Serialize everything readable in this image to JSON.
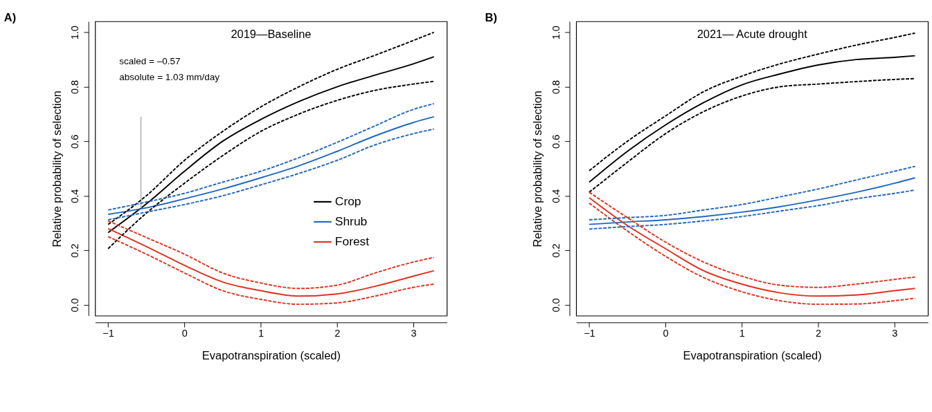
{
  "chart_data": [
    {
      "type": "line",
      "title": "A)",
      "xlabel": "Evapotranspiration (scaled)",
      "ylabel": "Relative probability of selection",
      "legend": "right",
      "annotations": [
        "2019—Baseline",
        "scaled = –0.57",
        "absolute = 1.03 mm/day"
      ],
      "xlim": [
        -1.17,
        3.44
      ],
      "ylim": [
        -0.04,
        1.04
      ],
      "xticks": [
        -1,
        0,
        1,
        2,
        3
      ],
      "yticks": [
        {
          "value": 0,
          "label": "0.0"
        },
        {
          "value": 0.2,
          "label": "0.2"
        },
        {
          "value": 0.4,
          "label": "0.4"
        },
        {
          "value": 0.6,
          "label": "0.6"
        },
        {
          "value": 0.8,
          "label": "0.8"
        },
        {
          "value": 1,
          "label": "1.0"
        }
      ],
      "x": [
        -1,
        -0.5,
        0,
        0.5,
        1,
        1.5,
        2,
        2.5,
        3,
        3.27
      ],
      "series": [
        {
          "name": "Crop",
          "color": "#000000",
          "line_style": "solid",
          "values": [
            0.265,
            0.37,
            0.49,
            0.6,
            0.68,
            0.746,
            0.8,
            0.843,
            0.884,
            0.91
          ]
        },
        {
          "name": "Shrub",
          "color": "#1f66c2",
          "line_style": "solid",
          "values": [
            0.332,
            0.356,
            0.389,
            0.425,
            0.466,
            0.51,
            0.563,
            0.62,
            0.669,
            0.69
          ]
        },
        {
          "name": "Forest",
          "color": "#e0301e",
          "line_style": "solid",
          "values": [
            0.28,
            0.214,
            0.145,
            0.084,
            0.052,
            0.032,
            0.04,
            0.068,
            0.105,
            0.125
          ]
        },
        {
          "color": "#000000",
          "line_style": "dashed",
          "values": [
            0.295,
            0.4,
            0.53,
            0.636,
            0.726,
            0.8,
            0.864,
            0.916,
            0.97,
            1.0
          ]
        },
        {
          "color": "#000000",
          "line_style": "dashed",
          "values": [
            0.206,
            0.336,
            0.446,
            0.547,
            0.636,
            0.7,
            0.75,
            0.787,
            0.81,
            0.82
          ]
        },
        {
          "color": "#1f66c2",
          "line_style": "dashed",
          "values": [
            0.348,
            0.377,
            0.409,
            0.45,
            0.49,
            0.54,
            0.596,
            0.657,
            0.717,
            0.738
          ]
        },
        {
          "color": "#1f66c2",
          "line_style": "dashed",
          "values": [
            0.312,
            0.34,
            0.368,
            0.4,
            0.44,
            0.482,
            0.53,
            0.587,
            0.628,
            0.645
          ]
        },
        {
          "color": "#e0301e",
          "line_style": "dashed",
          "values": [
            0.308,
            0.247,
            0.186,
            0.117,
            0.08,
            0.06,
            0.072,
            0.117,
            0.157,
            0.174
          ]
        },
        {
          "color": "#e0301e",
          "line_style": "dashed",
          "values": [
            0.25,
            0.186,
            0.117,
            0.052,
            0.02,
            0.002,
            0.007,
            0.032,
            0.064,
            0.076
          ]
        },
        {
          "type": "line",
          "color": "#bdbdbd",
          "line_style": "solid",
          "x": [
            -0.57,
            -0.57
          ],
          "values": [
            0.355,
            0.69
          ]
        }
      ]
    },
    {
      "type": "line",
      "title": "B)",
      "xlabel": "Evapotranspiration (scaled)",
      "ylabel": "Relative probability of selection",
      "annotations": [
        "2021— Acute drought"
      ],
      "xlim": [
        -1.17,
        3.44
      ],
      "ylim": [
        -0.04,
        1.04
      ],
      "xticks": [
        -1,
        0,
        1,
        2,
        3
      ],
      "yticks": [
        {
          "value": 0,
          "label": "0.0"
        },
        {
          "value": 0.2,
          "label": "0.2"
        },
        {
          "value": 0.4,
          "label": "0.4"
        },
        {
          "value": 0.6,
          "label": "0.6"
        },
        {
          "value": 0.8,
          "label": "0.8"
        },
        {
          "value": 1,
          "label": "1.0"
        }
      ],
      "x": [
        -1,
        -0.5,
        0,
        0.5,
        1,
        1.5,
        2,
        2.5,
        3,
        3.27
      ],
      "series": [
        {
          "color": "#000000",
          "line_style": "solid",
          "values": [
            0.45,
            0.563,
            0.66,
            0.742,
            0.807,
            0.847,
            0.88,
            0.9,
            0.908,
            0.914
          ]
        },
        {
          "color": "#1f66c2",
          "line_style": "solid",
          "values": [
            0.295,
            0.304,
            0.312,
            0.324,
            0.34,
            0.36,
            0.385,
            0.413,
            0.446,
            0.466
          ]
        },
        {
          "color": "#e0301e",
          "line_style": "solid",
          "values": [
            0.393,
            0.291,
            0.206,
            0.125,
            0.076,
            0.044,
            0.032,
            0.036,
            0.052,
            0.06
          ]
        },
        {
          "color": "#000000",
          "line_style": "dashed",
          "values": [
            0.492,
            0.6,
            0.693,
            0.782,
            0.839,
            0.884,
            0.92,
            0.953,
            0.981,
            0.997
          ]
        },
        {
          "color": "#000000",
          "line_style": "dashed",
          "values": [
            0.413,
            0.523,
            0.628,
            0.709,
            0.766,
            0.8,
            0.81,
            0.819,
            0.827,
            0.83
          ]
        },
        {
          "color": "#1f66c2",
          "line_style": "dashed",
          "values": [
            0.312,
            0.32,
            0.328,
            0.348,
            0.368,
            0.396,
            0.425,
            0.458,
            0.49,
            0.508
          ]
        },
        {
          "color": "#1f66c2",
          "line_style": "dashed",
          "values": [
            0.278,
            0.287,
            0.295,
            0.308,
            0.324,
            0.344,
            0.364,
            0.389,
            0.409,
            0.421
          ]
        },
        {
          "color": "#e0301e",
          "line_style": "dashed",
          "values": [
            0.413,
            0.32,
            0.23,
            0.157,
            0.105,
            0.072,
            0.064,
            0.076,
            0.093,
            0.102
          ]
        },
        {
          "color": "#e0301e",
          "line_style": "dashed",
          "values": [
            0.373,
            0.271,
            0.178,
            0.1,
            0.048,
            0.015,
            0.002,
            0.003,
            0.015,
            0.024
          ]
        }
      ]
    }
  ]
}
